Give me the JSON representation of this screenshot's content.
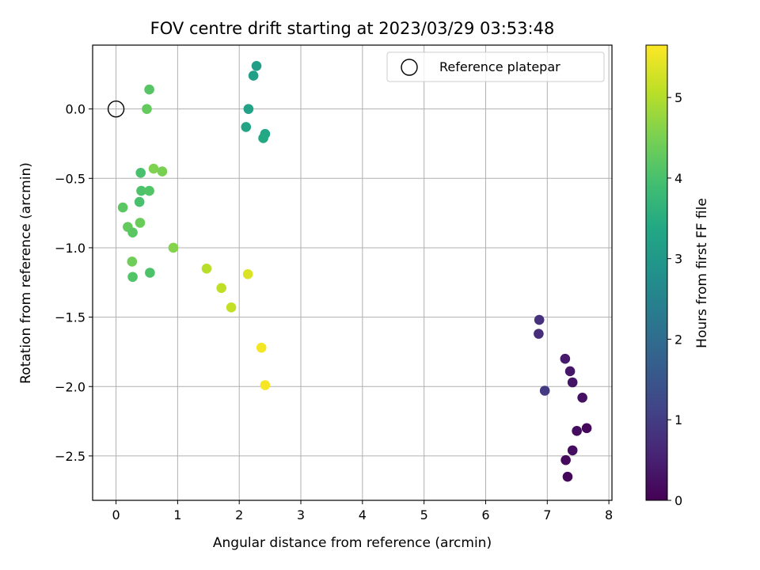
{
  "chart_data": {
    "type": "scatter",
    "title": "FOV centre drift starting at 2023/03/29 03:53:48",
    "xlabel": "Angular distance from reference (arcmin)",
    "ylabel": "Rotation from reference (arcmin)",
    "xlim": [
      -0.38,
      8.05
    ],
    "ylim": [
      -2.82,
      0.46
    ],
    "xticks": [
      0,
      1,
      2,
      3,
      4,
      5,
      6,
      7,
      8
    ],
    "yticks": [
      0.0,
      -0.5,
      -1.0,
      -1.5,
      -2.0,
      -2.5
    ],
    "ytick_labels": [
      "0.0",
      "−0.5",
      "−1.0",
      "−1.5",
      "−2.0",
      "−2.5"
    ],
    "grid": true,
    "legend": {
      "position": "top-right",
      "entries": [
        "Reference platepar"
      ]
    },
    "reference_point": {
      "x": 0.0,
      "y": 0.0
    },
    "colorbar": {
      "label": "Hours from first FF file",
      "min": 0,
      "max": 5.65,
      "ticks": [
        0,
        1,
        2,
        3,
        4,
        5
      ],
      "colormap": "viridis"
    },
    "points": [
      {
        "x": 7.33,
        "y": -2.65,
        "c": 0.1
      },
      {
        "x": 7.3,
        "y": -2.53,
        "c": 0.15
      },
      {
        "x": 7.41,
        "y": -2.46,
        "c": 0.2
      },
      {
        "x": 7.64,
        "y": -2.3,
        "c": 0.1
      },
      {
        "x": 7.48,
        "y": -2.32,
        "c": 0.2
      },
      {
        "x": 7.57,
        "y": -2.08,
        "c": 0.25
      },
      {
        "x": 7.41,
        "y": -1.97,
        "c": 0.3
      },
      {
        "x": 7.37,
        "y": -1.89,
        "c": 0.35
      },
      {
        "x": 7.29,
        "y": -1.8,
        "c": 0.4
      },
      {
        "x": 6.96,
        "y": -2.03,
        "c": 0.95
      },
      {
        "x": 6.86,
        "y": -1.62,
        "c": 0.75
      },
      {
        "x": 6.87,
        "y": -1.52,
        "c": 0.8
      },
      {
        "x": 2.28,
        "y": 0.31,
        "c": 3.15
      },
      {
        "x": 2.23,
        "y": 0.24,
        "c": 3.2
      },
      {
        "x": 2.15,
        "y": 0.0,
        "c": 3.25
      },
      {
        "x": 2.11,
        "y": -0.13,
        "c": 3.3
      },
      {
        "x": 2.42,
        "y": -0.18,
        "c": 3.35
      },
      {
        "x": 2.39,
        "y": -0.21,
        "c": 3.4
      },
      {
        "x": 0.54,
        "y": 0.14,
        "c": 4.15
      },
      {
        "x": 0.5,
        "y": 0.0,
        "c": 4.3
      },
      {
        "x": 0.61,
        "y": -0.43,
        "c": 4.55
      },
      {
        "x": 0.75,
        "y": -0.45,
        "c": 4.5
      },
      {
        "x": 0.4,
        "y": -0.46,
        "c": 4.0
      },
      {
        "x": 0.41,
        "y": -0.59,
        "c": 4.05
      },
      {
        "x": 0.54,
        "y": -0.59,
        "c": 4.1
      },
      {
        "x": 0.38,
        "y": -0.67,
        "c": 4.0
      },
      {
        "x": 0.11,
        "y": -0.71,
        "c": 4.2
      },
      {
        "x": 0.39,
        "y": -0.82,
        "c": 4.35
      },
      {
        "x": 0.19,
        "y": -0.85,
        "c": 4.3
      },
      {
        "x": 0.27,
        "y": -0.89,
        "c": 4.2
      },
      {
        "x": 0.26,
        "y": -1.1,
        "c": 4.4
      },
      {
        "x": 0.93,
        "y": -1.0,
        "c": 4.6
      },
      {
        "x": 0.27,
        "y": -1.21,
        "c": 4.1
      },
      {
        "x": 0.55,
        "y": -1.18,
        "c": 4.05
      },
      {
        "x": 1.47,
        "y": -1.15,
        "c": 5.05
      },
      {
        "x": 1.71,
        "y": -1.29,
        "c": 5.1
      },
      {
        "x": 1.87,
        "y": -1.43,
        "c": 5.15
      },
      {
        "x": 2.14,
        "y": -1.19,
        "c": 5.35
      },
      {
        "x": 2.36,
        "y": -1.72,
        "c": 5.55
      },
      {
        "x": 2.42,
        "y": -1.99,
        "c": 5.6
      }
    ]
  }
}
